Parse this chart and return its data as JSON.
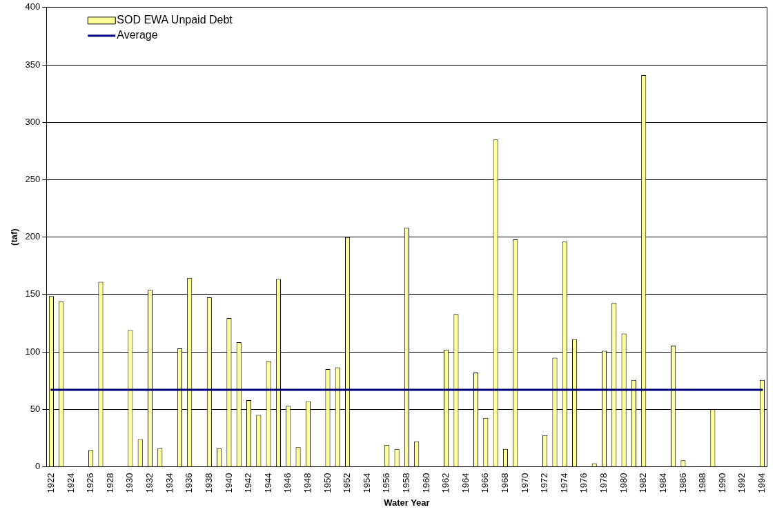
{
  "chart_data": {
    "type": "bar",
    "xlabel": "Water Year",
    "ylabel": "(taf)",
    "categories": [
      "1922",
      null,
      "1924",
      null,
      "1926",
      null,
      "1928",
      null,
      "1930",
      null,
      "1932",
      null,
      "1934",
      null,
      "1936",
      null,
      "1938",
      null,
      "1940",
      null,
      "1942",
      null,
      "1944",
      null,
      "1946",
      null,
      "1948",
      null,
      "1950",
      null,
      "1952",
      null,
      "1954",
      null,
      "1956",
      null,
      "1958",
      null,
      "1960",
      null,
      "1962",
      null,
      "1964",
      null,
      "1966",
      null,
      "1968",
      null,
      "1970",
      null,
      "1972",
      null,
      "1974",
      null,
      "1976",
      null,
      "1978",
      null,
      "1980",
      null,
      "1982",
      null,
      "1984",
      null,
      "1986",
      null,
      "1988",
      null,
      "1990",
      null,
      "1992",
      null,
      "1994"
    ],
    "series": [
      {
        "name": "SOD EWA Unpaid Debt",
        "color": "#ffff99",
        "values": [
          148.5,
          144,
          0,
          0,
          14.5,
          161,
          0,
          0,
          119,
          24,
          154,
          16,
          0,
          103,
          164.5,
          0,
          147.5,
          16,
          129.5,
          108.5,
          58,
          45,
          92,
          163.5,
          53,
          17,
          57,
          0,
          85,
          86.5,
          200,
          0,
          0,
          0,
          19,
          15.5,
          208,
          22,
          0,
          0,
          102,
          133,
          0,
          82,
          42.5,
          285,
          15.5,
          198,
          0,
          0,
          27.5,
          95,
          196,
          111,
          0,
          3,
          101,
          142.5,
          116,
          75.5,
          341,
          0,
          0,
          105.5,
          5.5,
          0,
          0,
          50,
          0,
          0,
          0,
          0,
          75.5
        ]
      }
    ],
    "ref_lines": [
      {
        "axis": "y",
        "value": 67,
        "label": "Average",
        "color": "#000080"
      }
    ],
    "ylim": [
      0,
      400
    ],
    "yticks": [
      0,
      50,
      100,
      150,
      200,
      250,
      300,
      350,
      400
    ],
    "grid": "y",
    "legend": "top left"
  }
}
